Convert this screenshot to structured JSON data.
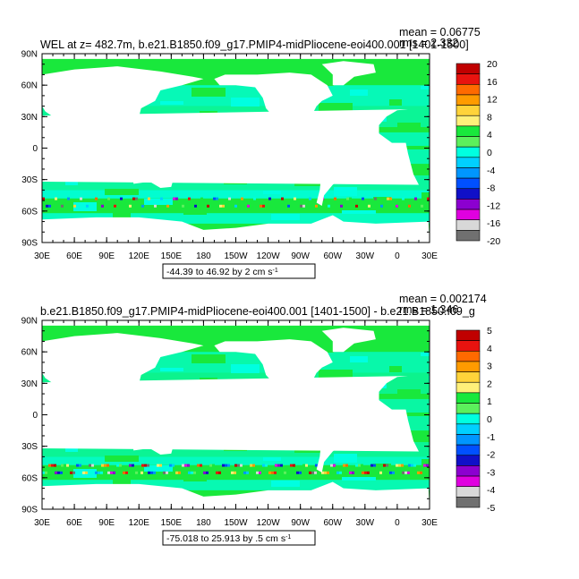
{
  "panels": [
    {
      "title": "WEL at z= 482.7m, b.e21.B1850.f09_g17.PMIP4-midPliocene-eoi400.001 [1401-1500]",
      "mean": "mean = 0.06775",
      "rms": "rms = 2.332",
      "range_label": "-44.39 to 46.92 by 2 cm s",
      "range_unit_exp": "-1",
      "colorbar_labels": [
        "20",
        "16",
        "12",
        "8",
        "4",
        "0",
        "-4",
        "-8",
        "-12",
        "-16",
        "-20"
      ]
    },
    {
      "title": "b.e21.B1850.f09_g17.PMIP4-midPliocene-eoi400.001 [1401-1500] - b.e21.B1850.f09_g",
      "mean": "mean = 0.002174",
      "rms": "rms = 1.346",
      "range_label": "-75.018 to 25.913 by .5 cm s",
      "range_unit_exp": "-1",
      "colorbar_labels": [
        "5",
        "4",
        "3",
        "2",
        "1",
        "0",
        "-1",
        "-2",
        "-3",
        "-4",
        "-5"
      ]
    }
  ],
  "lon_labels": [
    "30E",
    "60E",
    "90E",
    "120E",
    "150E",
    "180",
    "150W",
    "120W",
    "90W",
    "60W",
    "30W",
    "0",
    "30E"
  ],
  "lat_labels": [
    "90N",
    "60N",
    "30N",
    "0",
    "30S",
    "60S",
    "90S"
  ],
  "colors": {
    "ocean_main": "#19e83c",
    "ocean_alt": "#00ffe0",
    "land": "#ffffff",
    "colorbar": [
      "#c00000",
      "#e8130f",
      "#ff6a00",
      "#ff9b00",
      "#ffd33a",
      "#fff07a",
      "#19e83c",
      "#5cf05c",
      "#00ffe0",
      "#00d0ff",
      "#0096ff",
      "#0050ff",
      "#1010c8",
      "#8c00d0",
      "#e000e0",
      "#d8d8d8",
      "#707070"
    ]
  }
}
